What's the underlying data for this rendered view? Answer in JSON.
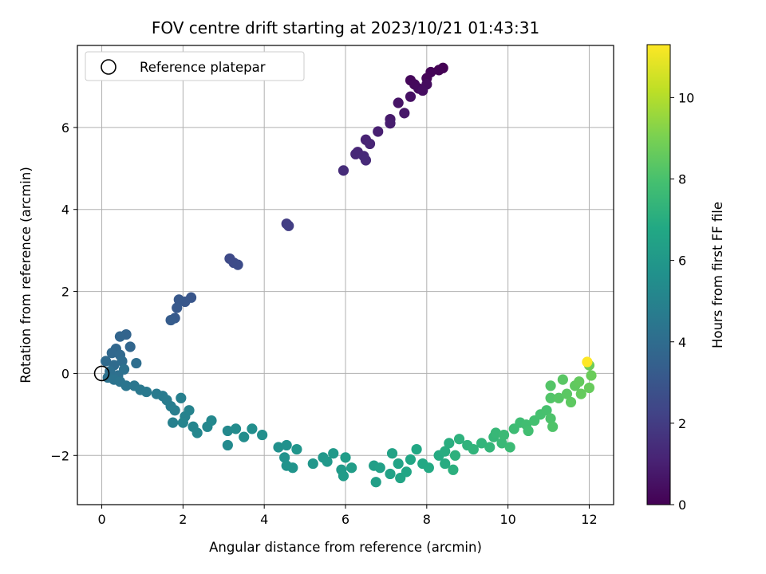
{
  "chart_data": {
    "type": "scatter",
    "title": "FOV centre drift starting at 2023/10/21 01:43:31",
    "xlabel": "Angular distance from reference (arcmin)",
    "ylabel": "Rotation from reference (arcmin)",
    "xlim": [
      -0.6,
      12.6
    ],
    "ylim": [
      -3.2,
      8.0
    ],
    "x_ticks": [
      0,
      2,
      4,
      6,
      8,
      10,
      12
    ],
    "y_ticks": [
      -2,
      0,
      2,
      4,
      6
    ],
    "x_tick_labels": [
      "0",
      "2",
      "4",
      "6",
      "8",
      "10",
      "12"
    ],
    "y_tick_labels": [
      "−2",
      "0",
      "2",
      "4",
      "6"
    ],
    "grid": true,
    "legend_position": "top-left",
    "legend_entries": [
      "Reference platepar"
    ],
    "reference_point": {
      "x": 0,
      "y": 0,
      "marker": "open-circle",
      "color": "#000000"
    },
    "colormap": "viridis",
    "colorbar": {
      "label": "Hours from first FF file",
      "range": [
        0,
        11.3
      ],
      "ticks": [
        0,
        2,
        4,
        6,
        8,
        10
      ],
      "tick_labels": [
        "0",
        "2",
        "4",
        "6",
        "8",
        "10"
      ]
    },
    "series": [
      {
        "marker": "filled-circle",
        "points": [
          [
            8.4,
            7.45,
            0.0
          ],
          [
            8.3,
            7.4,
            0.05
          ],
          [
            8.1,
            7.35,
            0.1
          ],
          [
            8.0,
            7.2,
            0.15
          ],
          [
            7.6,
            7.15,
            0.2
          ],
          [
            7.7,
            7.05,
            0.25
          ],
          [
            7.8,
            6.95,
            0.3
          ],
          [
            8.0,
            7.05,
            0.35
          ],
          [
            7.9,
            6.9,
            0.4
          ],
          [
            7.6,
            6.75,
            0.5
          ],
          [
            7.3,
            6.6,
            0.6
          ],
          [
            7.45,
            6.35,
            0.7
          ],
          [
            7.1,
            6.2,
            0.8
          ],
          [
            7.1,
            6.1,
            0.9
          ],
          [
            6.8,
            5.9,
            1.0
          ],
          [
            6.5,
            5.7,
            1.1
          ],
          [
            6.6,
            5.6,
            1.15
          ],
          [
            6.3,
            5.4,
            1.2
          ],
          [
            6.25,
            5.35,
            1.25
          ],
          [
            6.45,
            5.3,
            1.3
          ],
          [
            6.5,
            5.2,
            1.35
          ],
          [
            5.95,
            4.95,
            1.4
          ],
          [
            4.55,
            3.65,
            2.0
          ],
          [
            4.6,
            3.6,
            2.05
          ],
          [
            3.15,
            2.8,
            2.5
          ],
          [
            3.25,
            2.7,
            2.55
          ],
          [
            3.35,
            2.65,
            2.6
          ],
          [
            2.2,
            1.85,
            3.0
          ],
          [
            2.05,
            1.75,
            3.05
          ],
          [
            1.9,
            1.8,
            3.1
          ],
          [
            1.85,
            1.6,
            3.15
          ],
          [
            1.8,
            1.35,
            3.2
          ],
          [
            1.7,
            1.3,
            3.25
          ],
          [
            0.6,
            0.95,
            3.6
          ],
          [
            0.45,
            0.9,
            3.65
          ],
          [
            0.7,
            0.65,
            3.7
          ],
          [
            0.35,
            0.6,
            3.75
          ],
          [
            0.25,
            0.5,
            3.8
          ],
          [
            0.45,
            0.45,
            3.85
          ],
          [
            0.1,
            0.3,
            3.9
          ],
          [
            0.3,
            0.2,
            3.95
          ],
          [
            0.5,
            0.3,
            4.0
          ],
          [
            0.85,
            0.25,
            4.05
          ],
          [
            0.2,
            0.05,
            4.1
          ],
          [
            0.4,
            -0.05,
            4.15
          ],
          [
            0.55,
            0.1,
            4.2
          ],
          [
            0.15,
            -0.1,
            4.25
          ],
          [
            0.3,
            -0.15,
            4.3
          ],
          [
            0.45,
            -0.2,
            4.35
          ],
          [
            0.6,
            -0.3,
            4.4
          ],
          [
            0.8,
            -0.3,
            4.45
          ],
          [
            0.95,
            -0.4,
            4.5
          ],
          [
            1.1,
            -0.45,
            4.55
          ],
          [
            1.35,
            -0.5,
            4.6
          ],
          [
            1.5,
            -0.55,
            4.65
          ],
          [
            1.6,
            -0.65,
            4.7
          ],
          [
            1.7,
            -0.8,
            4.75
          ],
          [
            1.8,
            -0.9,
            4.8
          ],
          [
            1.95,
            -0.6,
            4.85
          ],
          [
            1.75,
            -1.2,
            4.9
          ],
          [
            2.05,
            -1.05,
            4.95
          ],
          [
            2.15,
            -0.9,
            5.0
          ],
          [
            2.0,
            -1.2,
            5.05
          ],
          [
            2.25,
            -1.3,
            5.1
          ],
          [
            2.35,
            -1.45,
            5.15
          ],
          [
            2.6,
            -1.3,
            5.2
          ],
          [
            2.7,
            -1.15,
            5.25
          ],
          [
            3.1,
            -1.4,
            5.3
          ],
          [
            3.1,
            -1.75,
            5.35
          ],
          [
            3.3,
            -1.35,
            5.4
          ],
          [
            3.5,
            -1.55,
            5.45
          ],
          [
            3.7,
            -1.35,
            5.5
          ],
          [
            3.95,
            -1.5,
            5.55
          ],
          [
            4.35,
            -1.8,
            5.6
          ],
          [
            4.55,
            -1.75,
            5.65
          ],
          [
            4.5,
            -2.05,
            5.7
          ],
          [
            4.55,
            -2.25,
            5.75
          ],
          [
            4.7,
            -2.3,
            5.8
          ],
          [
            4.8,
            -1.85,
            5.85
          ],
          [
            5.2,
            -2.2,
            5.9
          ],
          [
            5.45,
            -2.05,
            5.95
          ],
          [
            5.55,
            -2.15,
            6.0
          ],
          [
            5.7,
            -1.95,
            6.05
          ],
          [
            5.9,
            -2.35,
            6.1
          ],
          [
            5.95,
            -2.5,
            6.15
          ],
          [
            6.0,
            -2.05,
            6.2
          ],
          [
            6.15,
            -2.3,
            6.25
          ],
          [
            6.7,
            -2.25,
            6.3
          ],
          [
            6.75,
            -2.65,
            6.35
          ],
          [
            6.85,
            -2.3,
            6.4
          ],
          [
            7.1,
            -2.45,
            6.45
          ],
          [
            7.15,
            -1.95,
            6.5
          ],
          [
            7.3,
            -2.2,
            6.55
          ],
          [
            7.35,
            -2.55,
            6.6
          ],
          [
            7.5,
            -2.4,
            6.65
          ],
          [
            7.6,
            -2.1,
            6.7
          ],
          [
            7.75,
            -1.85,
            6.75
          ],
          [
            7.9,
            -2.2,
            6.8
          ],
          [
            8.05,
            -2.3,
            6.85
          ],
          [
            8.3,
            -2.0,
            6.9
          ],
          [
            8.45,
            -2.2,
            6.95
          ],
          [
            8.45,
            -1.9,
            7.0
          ],
          [
            8.55,
            -1.7,
            7.05
          ],
          [
            8.65,
            -2.35,
            7.1
          ],
          [
            8.7,
            -2.0,
            7.15
          ],
          [
            8.8,
            -1.6,
            7.2
          ],
          [
            9.0,
            -1.75,
            7.25
          ],
          [
            9.15,
            -1.85,
            7.3
          ],
          [
            9.35,
            -1.7,
            7.35
          ],
          [
            9.55,
            -1.8,
            7.4
          ],
          [
            9.65,
            -1.55,
            7.45
          ],
          [
            9.7,
            -1.45,
            7.5
          ],
          [
            9.85,
            -1.7,
            7.55
          ],
          [
            9.9,
            -1.5,
            7.6
          ],
          [
            10.05,
            -1.8,
            7.65
          ],
          [
            10.15,
            -1.35,
            7.7
          ],
          [
            10.3,
            -1.2,
            7.75
          ],
          [
            10.45,
            -1.25,
            7.8
          ],
          [
            10.5,
            -1.4,
            7.85
          ],
          [
            10.65,
            -1.15,
            7.9
          ],
          [
            10.8,
            -1.0,
            7.95
          ],
          [
            10.95,
            -0.9,
            8.0
          ],
          [
            11.05,
            -1.1,
            8.1
          ],
          [
            11.1,
            -1.3,
            8.15
          ],
          [
            11.05,
            -0.6,
            8.2
          ],
          [
            11.05,
            -0.3,
            8.25
          ],
          [
            11.25,
            -0.6,
            8.3
          ],
          [
            11.35,
            -0.15,
            8.35
          ],
          [
            11.45,
            -0.5,
            8.4
          ],
          [
            11.55,
            -0.7,
            8.45
          ],
          [
            11.65,
            -0.3,
            8.5
          ],
          [
            11.75,
            -0.2,
            8.55
          ],
          [
            11.8,
            -0.5,
            8.6
          ],
          [
            12.0,
            -0.35,
            8.65
          ],
          [
            12.05,
            -0.05,
            8.7
          ],
          [
            12.0,
            0.2,
            8.75
          ],
          [
            11.95,
            0.28,
            11.3
          ]
        ]
      }
    ]
  }
}
